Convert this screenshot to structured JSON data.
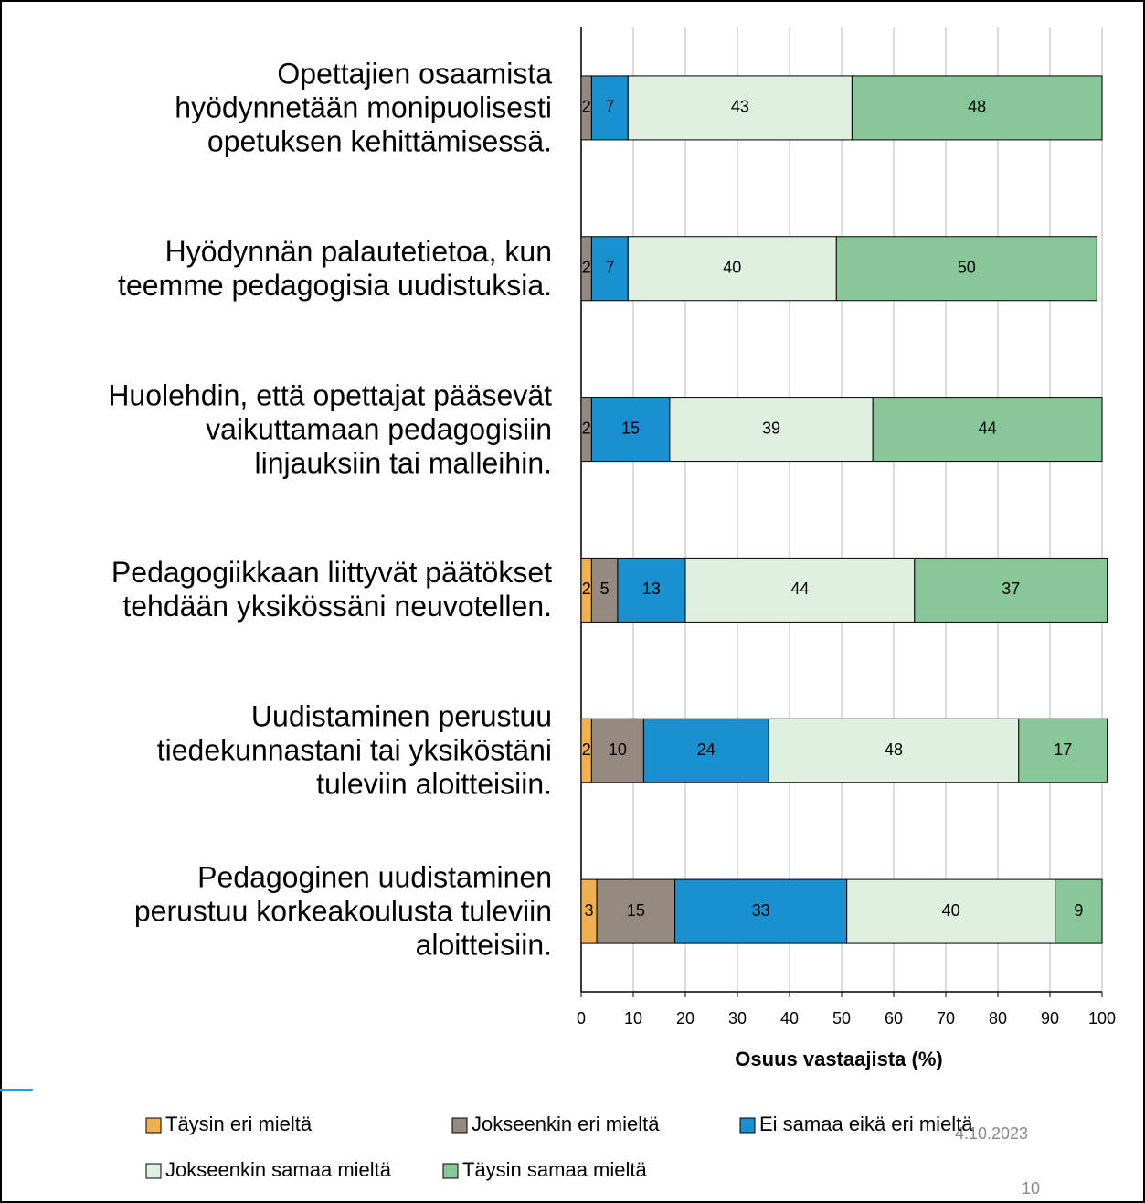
{
  "chart_data": {
    "type": "stacked_bar_horizontal",
    "x_label": "Osuus vastaajista (%)",
    "categories": [
      "Opettajien osaamista\nhyödynnetään monipuolisesti\nopetuksen kehittämisessä.",
      "Hyödynnän palautetietoa, kun\nteemme pedagogisia uudistuksia.",
      "Huolehdin, että opettajat pääsevät\nvaikuttamaan pedagogisiin\nlinjauksiin tai malleihin.",
      "Pedagogiikkaan liittyvät päätökset\ntehdään yksikössäni neuvotellen.",
      "Uudistaminen perustuu\ntiedekunnastani tai yksiköstäni\ntuleviin aloitteisiin.",
      "Pedagoginen uudistaminen\nperustuu korkeakoulusta tuleviin\naloitteisiin."
    ],
    "series": [
      {
        "name": "Täysin eri mieltä",
        "color": "#f0b050",
        "values": [
          0,
          0,
          0,
          2,
          2,
          3
        ]
      },
      {
        "name": "Jokseenkin eri mieltä",
        "color": "#968a80",
        "values": [
          2,
          2,
          2,
          5,
          10,
          15
        ]
      },
      {
        "name": "Ei samaa eikä eri mieltä",
        "color": "#1a90d0",
        "values": [
          7,
          7,
          15,
          13,
          24,
          33
        ]
      },
      {
        "name": "Jokseenkin samaa mieltä",
        "color": "#dff0e0",
        "values": [
          43,
          40,
          39,
          44,
          48,
          40
        ]
      },
      {
        "name": "Täysin samaa mieltä",
        "color": "#88c898",
        "values": [
          48,
          50,
          44,
          37,
          17,
          9
        ]
      }
    ],
    "xlim": [
      0,
      100
    ],
    "xticks": [
      0,
      10,
      20,
      30,
      40,
      50,
      60,
      70,
      80,
      90,
      100
    ],
    "grid": true,
    "footer": {
      "date": "4.10.2023",
      "page": "10"
    }
  }
}
